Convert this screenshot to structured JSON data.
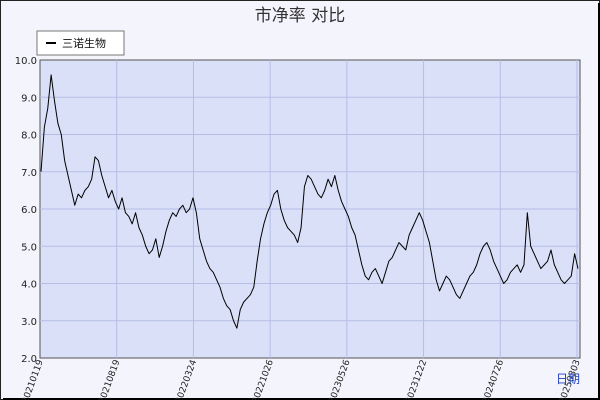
{
  "chart_data": {
    "type": "line",
    "title": "市净率  对比",
    "legend_entries": [
      "三诺生物"
    ],
    "legend_placement": "top-left",
    "grid": true,
    "xlabel": "",
    "ylabel": "",
    "ylim": [
      2.0,
      10.0
    ],
    "yticks": [
      "2.0",
      "3.0",
      "4.0",
      "5.0",
      "6.0",
      "7.0",
      "8.0",
      "9.0",
      "10.0"
    ],
    "xticks": [
      "20210119",
      "20210819",
      "20220324",
      "20221026",
      "20230526",
      "20231222",
      "20240726",
      "20250303"
    ],
    "series": [
      {
        "name": "三诺生物",
        "color": "#000000",
        "values": [
          7.0,
          8.2,
          8.7,
          9.6,
          8.9,
          8.3,
          8.0,
          7.3,
          6.9,
          6.5,
          6.1,
          6.4,
          6.3,
          6.5,
          6.6,
          6.8,
          7.4,
          7.3,
          6.9,
          6.6,
          6.3,
          6.5,
          6.2,
          6.0,
          6.3,
          5.9,
          5.8,
          5.6,
          5.9,
          5.5,
          5.3,
          5.0,
          4.8,
          4.9,
          5.2,
          4.7,
          5.0,
          5.4,
          5.7,
          5.9,
          5.8,
          6.0,
          6.1,
          5.9,
          6.0,
          6.3,
          5.9,
          5.2,
          4.9,
          4.6,
          4.4,
          4.3,
          4.1,
          3.9,
          3.6,
          3.4,
          3.3,
          3.0,
          2.8,
          3.3,
          3.5,
          3.6,
          3.7,
          3.9,
          4.6,
          5.2,
          5.6,
          5.9,
          6.1,
          6.4,
          6.5,
          6.0,
          5.7,
          5.5,
          5.4,
          5.3,
          5.1,
          5.5,
          6.6,
          6.9,
          6.8,
          6.6,
          6.4,
          6.3,
          6.5,
          6.8,
          6.6,
          6.9,
          6.5,
          6.2,
          6.0,
          5.8,
          5.5,
          5.3,
          4.9,
          4.5,
          4.2,
          4.1,
          4.3,
          4.4,
          4.2,
          4.0,
          4.3,
          4.6,
          4.7,
          4.9,
          5.1,
          5.0,
          4.9,
          5.3,
          5.5,
          5.7,
          5.9,
          5.7,
          5.4,
          5.1,
          4.6,
          4.1,
          3.8,
          4.0,
          4.2,
          4.1,
          3.9,
          3.7,
          3.6,
          3.8,
          4.0,
          4.2,
          4.3,
          4.5,
          4.8,
          5.0,
          5.1,
          4.9,
          4.6,
          4.4,
          4.2,
          4.0,
          4.1,
          4.3,
          4.4,
          4.5,
          4.3,
          4.5,
          5.9,
          5.0,
          4.8,
          4.6,
          4.4,
          4.5,
          4.6,
          4.9,
          4.5,
          4.3,
          4.1,
          4.0,
          4.1,
          4.2,
          4.8,
          4.4
        ]
      }
    ],
    "corner_link_text": "日期"
  }
}
